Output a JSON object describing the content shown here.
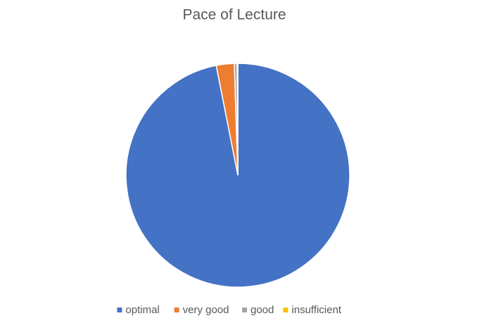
{
  "chart_data": {
    "type": "pie",
    "title": "Pace of Lecture",
    "categories": [
      "optimal",
      "very good",
      "good",
      "insufficient"
    ],
    "values": [
      96.9,
      2.6,
      0.4,
      0.1
    ],
    "colors": [
      "#4472c4",
      "#ed7d31",
      "#a5a5a5",
      "#ffc000"
    ],
    "legend": "bottom"
  }
}
